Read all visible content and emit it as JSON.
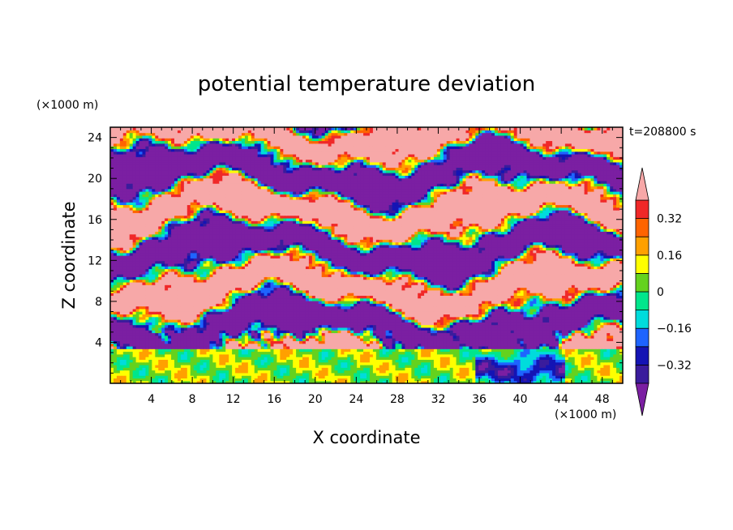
{
  "chart_data": {
    "type": "heatmap",
    "title": "potential temperature deviation",
    "xlabel": "X coordinate",
    "ylabel": "Z coordinate",
    "x_unit": "(×1000 m)",
    "y_unit": "(×1000 m)",
    "time_label": "t=208800 s",
    "xlim": [
      0,
      50
    ],
    "ylim": [
      0,
      25
    ],
    "x_ticks": [
      4,
      8,
      12,
      16,
      20,
      24,
      28,
      32,
      36,
      40,
      44,
      48
    ],
    "y_ticks": [
      4,
      8,
      12,
      16,
      20,
      24
    ],
    "colorbar": {
      "levels": [
        -0.4,
        -0.32,
        -0.24,
        -0.16,
        -0.08,
        0,
        0.08,
        0.16,
        0.24,
        0.32,
        0.4
      ],
      "labeled_levels": [
        0.32,
        0.16,
        0,
        -0.16,
        -0.32
      ],
      "labels": [
        "0.32",
        "0.16",
        "0",
        "−0.16",
        "−0.32"
      ],
      "colors": [
        "#7b1fa2",
        "#3a1c9c",
        "#1414b4",
        "#1e64ff",
        "#00dcdc",
        "#00e68c",
        "#64d21e",
        "#ffff00",
        "#ffa000",
        "#ff6400",
        "#f02828",
        "#f7a8a8"
      ],
      "extend": "both"
    },
    "bands": [
      {
        "z_range": [
          0,
          3.3
        ],
        "description_values": "mostly near zero (-0.08 to 0.24), with negative (-0.16 to -0.32) region around x=36-44"
      },
      {
        "z_range": [
          3.3,
          25
        ],
        "description_values": "alternating layers of strong positive (>0.4) and strong negative (<-0.4) deviation"
      }
    ]
  }
}
